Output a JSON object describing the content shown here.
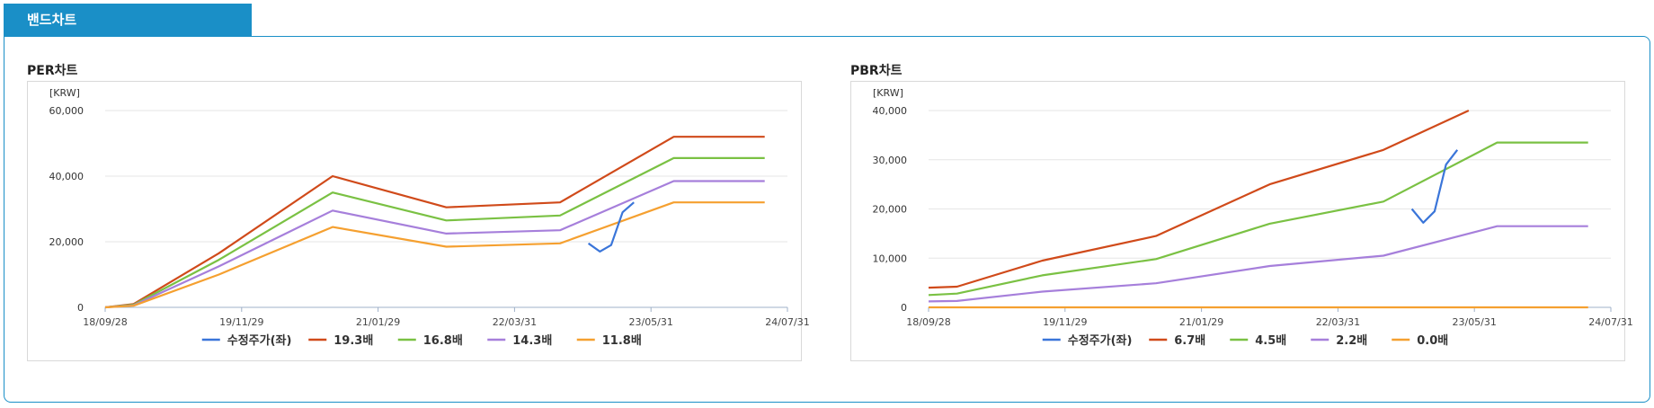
{
  "page": {
    "tab_label": "밴드차트"
  },
  "chart_data": [
    {
      "type": "line",
      "title": "PER차트",
      "unit_label": "[KRW]",
      "x_ticks": [
        "18/09/28",
        "19/11/29",
        "21/01/29",
        "22/03/31",
        "23/05/31",
        "24/07/31"
      ],
      "ylim": [
        0,
        60000
      ],
      "y_ticks": [
        0,
        20000,
        40000,
        60000
      ],
      "y_tick_labels": [
        "0",
        "20,000",
        "40,000",
        "60,000"
      ],
      "grid": true,
      "legend_position": "bottom",
      "legend_marker": "—",
      "x_index_range": [
        0,
        6
      ],
      "series": [
        {
          "name": "수정주가(좌)",
          "color": "#3a75d9",
          "x": [
            4.25,
            4.35,
            4.45,
            4.55,
            4.65
          ],
          "values": [
            19500,
            17000,
            19000,
            29000,
            32000
          ]
        },
        {
          "name": "19.3배",
          "color": "#d04a1a",
          "x": [
            0,
            0.25,
            1,
            2,
            3,
            4,
            5,
            5.8
          ],
          "values": [
            0,
            1000,
            16500,
            40000,
            30500,
            32000,
            52000,
            52000
          ]
        },
        {
          "name": "16.8배",
          "color": "#7ac143",
          "x": [
            0,
            0.25,
            1,
            2,
            3,
            4,
            5,
            5.8
          ],
          "values": [
            0,
            800,
            14500,
            35000,
            26500,
            28000,
            45500,
            45500
          ]
        },
        {
          "name": "14.3배",
          "color": "#a67fdb",
          "x": [
            0,
            0.25,
            1,
            2,
            3,
            4,
            5,
            5.8
          ],
          "values": [
            0,
            600,
            12500,
            29500,
            22500,
            23500,
            38500,
            38500
          ]
        },
        {
          "name": "11.8배",
          "color": "#f5a030",
          "x": [
            0,
            0.25,
            1,
            2,
            3,
            4,
            5,
            5.8
          ],
          "values": [
            0,
            500,
            10000,
            24500,
            18500,
            19500,
            32000,
            32000
          ]
        }
      ]
    },
    {
      "type": "line",
      "title": "PBR차트",
      "unit_label": "[KRW]",
      "x_ticks": [
        "18/09/28",
        "19/11/29",
        "21/01/29",
        "22/03/31",
        "23/05/31",
        "24/07/31"
      ],
      "ylim": [
        0,
        40000
      ],
      "y_ticks": [
        0,
        10000,
        20000,
        30000,
        40000
      ],
      "y_tick_labels": [
        "0",
        "10,000",
        "20,000",
        "30,000",
        "40,000"
      ],
      "grid": true,
      "legend_position": "bottom",
      "legend_marker": "—",
      "x_index_range": [
        0,
        6
      ],
      "series": [
        {
          "name": "수정주가(좌)",
          "color": "#3a75d9",
          "x": [
            4.25,
            4.35,
            4.45,
            4.55,
            4.65
          ],
          "values": [
            20000,
            17200,
            19500,
            29000,
            32000
          ]
        },
        {
          "name": "6.7배",
          "color": "#d04a1a",
          "x": [
            0,
            0.25,
            1,
            2,
            3,
            4,
            4.75
          ],
          "values": [
            4000,
            4200,
            9500,
            14500,
            25000,
            32000,
            40000
          ]
        },
        {
          "name": "4.5배",
          "color": "#7ac143",
          "x": [
            0,
            0.25,
            1,
            2,
            3,
            4,
            5,
            5.8
          ],
          "values": [
            2500,
            2800,
            6500,
            9800,
            17000,
            21500,
            33500,
            33500
          ]
        },
        {
          "name": "2.2배",
          "color": "#a67fdb",
          "x": [
            0,
            0.25,
            1,
            2,
            3,
            4,
            5,
            5.8
          ],
          "values": [
            1200,
            1300,
            3200,
            4900,
            8400,
            10500,
            16500,
            16500
          ]
        },
        {
          "name": "0.0배",
          "color": "#f5a030",
          "x": [
            0,
            5.8
          ],
          "values": [
            0,
            0
          ]
        }
      ]
    }
  ]
}
